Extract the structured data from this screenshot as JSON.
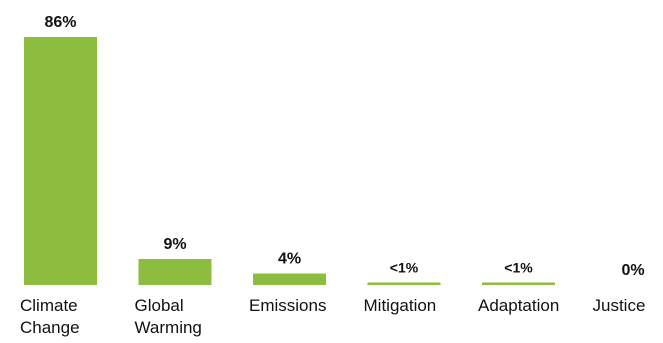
{
  "chart_data": {
    "type": "bar",
    "categories": [
      "Climate Change",
      "Global Warming",
      "Emissions",
      "Mitigation",
      "Adaptation",
      "Justice"
    ],
    "category_lines": [
      [
        "Climate",
        "Change"
      ],
      [
        "Global",
        "Warming"
      ],
      [
        "Emissions"
      ],
      [
        "Mitigation"
      ],
      [
        "Adaptation"
      ],
      [
        "Justice"
      ]
    ],
    "values": [
      86,
      9,
      4,
      0.5,
      0.5,
      0
    ],
    "value_labels": [
      "86%",
      "9%",
      "4%",
      "<1%",
      "<1%",
      "0%"
    ],
    "title": "",
    "xlabel": "",
    "ylabel": "",
    "ylim": [
      0,
      86
    ],
    "grid": false,
    "legend": "none",
    "bar_color": "#8dbd3e"
  }
}
